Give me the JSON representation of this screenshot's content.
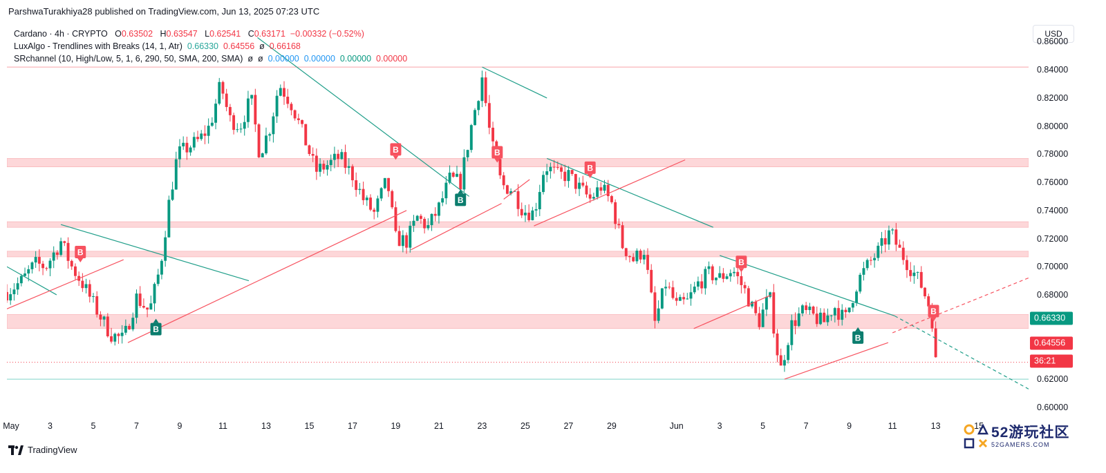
{
  "header": {
    "published_line": "ParshwaTurakhiya28 published on TradingView.com, Jun 13, 2025 07:23 UTC"
  },
  "legend": {
    "symbol": "Cardano · 4h · CRYPTO",
    "o_label": "O",
    "o_value": "0.63502",
    "h_label": "H",
    "h_value": "0.63547",
    "l_label": "L",
    "l_value": "0.62541",
    "c_label": "C",
    "c_value": "0.63171",
    "change": "−0.00332 (−0.52%)",
    "indicator1_name": "LuxAlgo - Trendlines with Breaks (14, 1, Atr)",
    "indicator1_v1": "0.66330",
    "indicator1_v2": "0.64556",
    "indicator1_v3": "0.66168",
    "indicator2_name": "SRchannel (10, High/Low, 5, 1, 6, 290, 50, SMA, 200, SMA)",
    "indicator2_v1": "0.00000",
    "indicator2_v2": "0.00000",
    "indicator2_v3": "0.00000",
    "indicator2_v4": "0.00000"
  },
  "currency_button": "USD",
  "price_badges": {
    "green_value": "0.66330",
    "green_color": "#089981",
    "red_value": "0.64556",
    "red_color": "#f23645",
    "timer_value": "36:21",
    "timer_color": "#f23645"
  },
  "footer": {
    "brand": "TradingView"
  },
  "watermark": {
    "big": "52游玩社区",
    "small": "52GAMERS.COM"
  },
  "colors": {
    "up": "#089981",
    "down": "#f23645",
    "trend_green": "#1f9e89",
    "trend_red": "#f7525f",
    "zone": "#fcc9cc"
  },
  "chart_data": {
    "type": "candlestick",
    "symbol": "Cardano",
    "interval": "4h",
    "ylim": [
      0.595,
      0.873
    ],
    "y_ticks": [
      "0.60000",
      "0.62000",
      "0.64000",
      "0.66000",
      "0.68000",
      "0.70000",
      "0.72000",
      "0.74000",
      "0.76000",
      "0.78000",
      "0.80000",
      "0.82000",
      "0.84000",
      "0.86000"
    ],
    "x_ticks": [
      "May",
      "3",
      "5",
      "7",
      "9",
      "11",
      "13",
      "15",
      "17",
      "19",
      "21",
      "23",
      "25",
      "27",
      "29",
      "Jun",
      "3",
      "5",
      "7",
      "9",
      "11",
      "13",
      "15"
    ],
    "x_tick_days": [
      1,
      3,
      5,
      7,
      9,
      11,
      13,
      15,
      17,
      19,
      21,
      23,
      25,
      27,
      29,
      32,
      34,
      36,
      38,
      40,
      42,
      44,
      46
    ],
    "xlim_days": [
      1.0,
      48.3
    ],
    "close_anchors": [
      [
        1.0,
        0.682
      ],
      [
        1.7,
        0.69
      ],
      [
        2.3,
        0.702
      ],
      [
        2.8,
        0.7
      ],
      [
        3.5,
        0.718
      ],
      [
        4.0,
        0.7
      ],
      [
        4.5,
        0.688
      ],
      [
        5.2,
        0.668
      ],
      [
        5.8,
        0.652
      ],
      [
        6.4,
        0.648
      ],
      [
        7.0,
        0.678
      ],
      [
        7.6,
        0.668
      ],
      [
        8.1,
        0.7
      ],
      [
        8.5,
        0.745
      ],
      [
        8.9,
        0.78
      ],
      [
        9.4,
        0.785
      ],
      [
        9.9,
        0.79
      ],
      [
        10.4,
        0.8
      ],
      [
        10.9,
        0.83
      ],
      [
        11.3,
        0.805
      ],
      [
        11.8,
        0.8
      ],
      [
        12.3,
        0.82
      ],
      [
        12.7,
        0.78
      ],
      [
        13.2,
        0.8
      ],
      [
        13.6,
        0.83
      ],
      [
        14.2,
        0.815
      ],
      [
        14.8,
        0.79
      ],
      [
        15.3,
        0.768
      ],
      [
        15.8,
        0.772
      ],
      [
        16.4,
        0.778
      ],
      [
        17.0,
        0.765
      ],
      [
        17.5,
        0.748
      ],
      [
        18.0,
        0.738
      ],
      [
        18.6,
        0.762
      ],
      [
        19.0,
        0.72
      ],
      [
        19.5,
        0.718
      ],
      [
        20.0,
        0.735
      ],
      [
        20.5,
        0.728
      ],
      [
        21.0,
        0.742
      ],
      [
        21.5,
        0.762
      ],
      [
        22.0,
        0.76
      ],
      [
        22.5,
        0.8
      ],
      [
        23.0,
        0.835
      ],
      [
        23.4,
        0.79
      ],
      [
        23.9,
        0.758
      ],
      [
        24.4,
        0.755
      ],
      [
        24.9,
        0.74
      ],
      [
        25.4,
        0.738
      ],
      [
        25.9,
        0.772
      ],
      [
        26.5,
        0.765
      ],
      [
        27.0,
        0.765
      ],
      [
        27.5,
        0.756
      ],
      [
        28.0,
        0.748
      ],
      [
        28.5,
        0.757
      ],
      [
        29.0,
        0.745
      ],
      [
        29.5,
        0.715
      ],
      [
        30.0,
        0.705
      ],
      [
        30.5,
        0.712
      ],
      [
        31.0,
        0.66
      ],
      [
        31.5,
        0.688
      ],
      [
        32.0,
        0.672
      ],
      [
        32.5,
        0.675
      ],
      [
        33.0,
        0.688
      ],
      [
        33.5,
        0.695
      ],
      [
        34.0,
        0.692
      ],
      [
        34.6,
        0.698
      ],
      [
        35.2,
        0.682
      ],
      [
        35.8,
        0.66
      ],
      [
        36.3,
        0.68
      ],
      [
        36.8,
        0.625
      ],
      [
        37.3,
        0.658
      ],
      [
        37.8,
        0.668
      ],
      [
        38.3,
        0.665
      ],
      [
        38.8,
        0.66
      ],
      [
        39.3,
        0.672
      ],
      [
        39.8,
        0.662
      ],
      [
        40.4,
        0.69
      ],
      [
        40.9,
        0.702
      ],
      [
        41.4,
        0.712
      ],
      [
        41.9,
        0.725
      ],
      [
        42.3,
        0.712
      ],
      [
        42.8,
        0.7
      ],
      [
        43.3,
        0.688
      ],
      [
        43.8,
        0.668
      ],
      [
        44.0,
        0.632
      ]
    ],
    "annotations": {
      "horizontal_zones": [
        [
          0.656,
          0.666
        ],
        [
          0.707,
          0.711
        ],
        [
          0.728,
          0.732
        ],
        [
          0.771,
          0.777
        ]
      ],
      "horizontal_lines": [
        {
          "y": 0.842,
          "color": "red"
        },
        {
          "y": 0.62,
          "color": "teal"
        },
        {
          "y": 0.632,
          "color": "red-dotted"
        }
      ],
      "trend_lines": [
        {
          "color": "green",
          "from": [
            1.0,
            0.7
          ],
          "to": [
            3.3,
            0.68
          ]
        },
        {
          "color": "green",
          "from": [
            3.5,
            0.73
          ],
          "to": [
            12.2,
            0.69
          ]
        },
        {
          "color": "green",
          "from": [
            12.6,
            0.863
          ],
          "to": [
            22.4,
            0.75
          ]
        },
        {
          "color": "green",
          "from": [
            23.0,
            0.842
          ],
          "to": [
            26.0,
            0.82
          ]
        },
        {
          "color": "green",
          "from": [
            26.0,
            0.777
          ],
          "to": [
            33.7,
            0.728
          ]
        },
        {
          "color": "green",
          "from": [
            34.0,
            0.708
          ],
          "to": [
            42.1,
            0.665
          ]
        },
        {
          "color": "green-dashed",
          "from": [
            42.1,
            0.665
          ],
          "to": [
            48.3,
            0.613
          ]
        },
        {
          "color": "red",
          "from": [
            1.0,
            0.67
          ],
          "to": [
            6.4,
            0.705
          ]
        },
        {
          "color": "red",
          "from": [
            6.6,
            0.646
          ],
          "to": [
            19.5,
            0.74
          ]
        },
        {
          "color": "red",
          "from": [
            19.7,
            0.712
          ],
          "to": [
            23.9,
            0.745
          ]
        },
        {
          "color": "red",
          "from": [
            24.0,
            0.748
          ],
          "to": [
            25.2,
            0.762
          ]
        },
        {
          "color": "red",
          "from": [
            25.4,
            0.729
          ],
          "to": [
            32.4,
            0.776
          ]
        },
        {
          "color": "red",
          "from": [
            32.8,
            0.656
          ],
          "to": [
            36.4,
            0.68
          ]
        },
        {
          "color": "red",
          "from": [
            37.0,
            0.62
          ],
          "to": [
            41.8,
            0.646
          ]
        },
        {
          "color": "red-dashed",
          "from": [
            42.0,
            0.653
          ],
          "to": [
            48.3,
            0.692
          ]
        }
      ],
      "markers": [
        {
          "label": "B",
          "type": "break-down",
          "day": 4.4,
          "price": 0.706
        },
        {
          "label": "B",
          "type": "break-up",
          "day": 7.9,
          "price": 0.66
        },
        {
          "label": "B",
          "type": "break-down",
          "day": 19.0,
          "price": 0.779
        },
        {
          "label": "B",
          "type": "break-up",
          "day": 22.0,
          "price": 0.752
        },
        {
          "label": "B",
          "type": "break-down",
          "day": 23.7,
          "price": 0.777
        },
        {
          "label": "B",
          "type": "break-down",
          "day": 28.0,
          "price": 0.766
        },
        {
          "label": "B",
          "type": "break-down",
          "day": 35.0,
          "price": 0.699
        },
        {
          "label": "B",
          "type": "break-up",
          "day": 40.4,
          "price": 0.654
        },
        {
          "label": "B",
          "type": "break-down",
          "day": 43.9,
          "price": 0.664
        }
      ]
    }
  }
}
